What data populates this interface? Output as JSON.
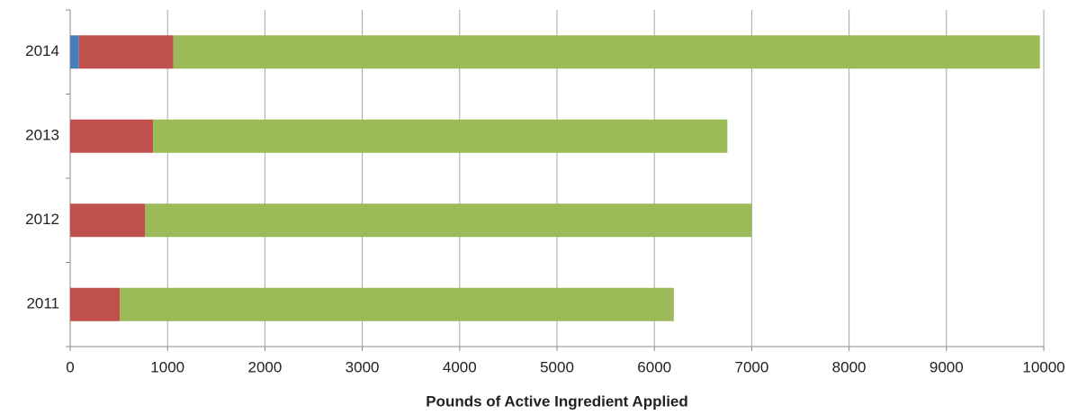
{
  "chart_data": {
    "type": "hbar_stacked",
    "x_label": "Pounds of Active Ingredient Applied",
    "categories": [
      "2011",
      "2012",
      "2013",
      "2014"
    ],
    "series": [
      {
        "color": "#4a7ebb",
        "values": [
          0,
          0,
          0,
          90
        ]
      },
      {
        "color": "#c0504d",
        "values": [
          510,
          770,
          850,
          970
        ]
      },
      {
        "color": "#9bbb59",
        "values": [
          5690,
          6230,
          5900,
          8900
        ]
      }
    ],
    "xlim": [
      0,
      10000
    ],
    "xticks": [
      0,
      1000,
      2000,
      3000,
      4000,
      5000,
      6000,
      7000,
      8000,
      9000,
      10000
    ],
    "grid": true
  }
}
